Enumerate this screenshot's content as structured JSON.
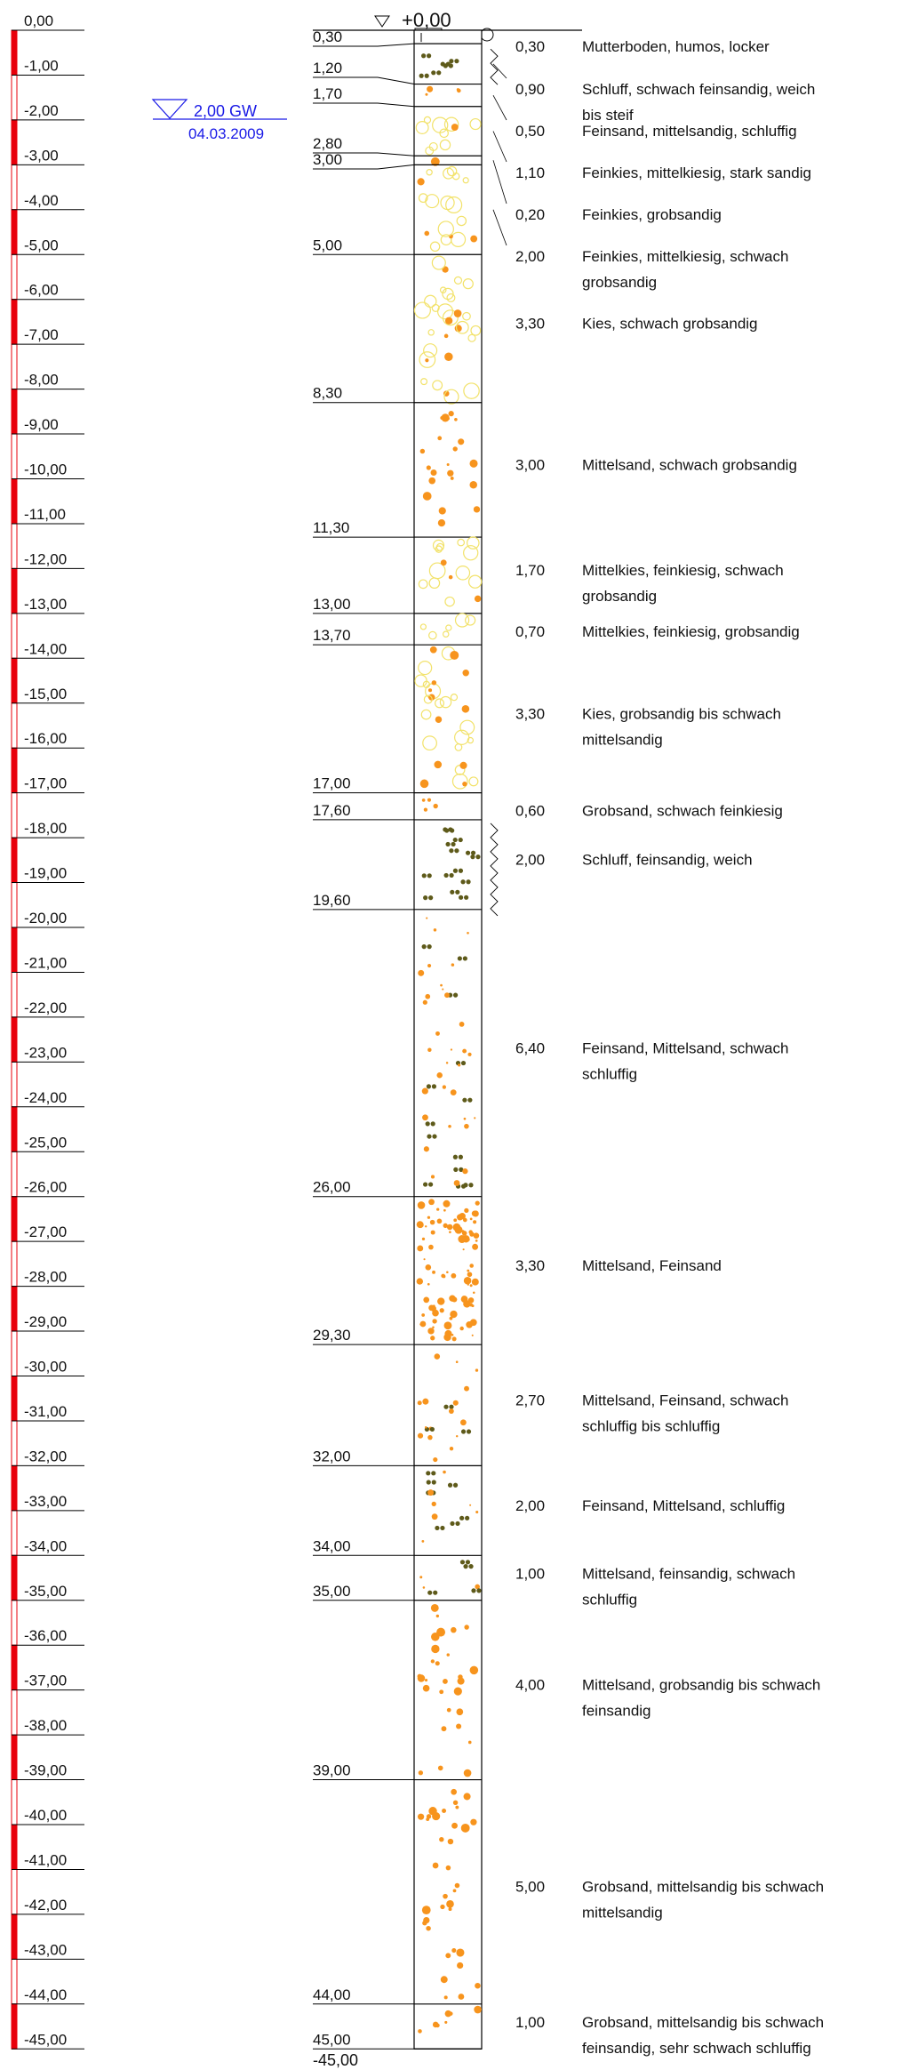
{
  "header": {
    "top_level": "+0,00",
    "bottom_level": "-45,00"
  },
  "groundwater": {
    "depth_value": -2.0,
    "label": "2,00 GW",
    "date": "04.03.2009"
  },
  "depth_scale": {
    "max_depth": 45,
    "tick_labels": [
      "0,00",
      "-1,00",
      "-2,00",
      "-3,00",
      "-4,00",
      "-5,00",
      "-6,00",
      "-7,00",
      "-8,00",
      "-9,00",
      "-10,00",
      "-11,00",
      "-12,00",
      "-13,00",
      "-14,00",
      "-15,00",
      "-16,00",
      "-17,00",
      "-18,00",
      "-19,00",
      "-20,00",
      "-21,00",
      "-22,00",
      "-23,00",
      "-24,00",
      "-25,00",
      "-26,00",
      "-27,00",
      "-28,00",
      "-29,00",
      "-30,00",
      "-31,00",
      "-32,00",
      "-33,00",
      "-34,00",
      "-35,00",
      "-36,00",
      "-37,00",
      "-38,00",
      "-39,00",
      "-40,00",
      "-41,00",
      "-42,00",
      "-43,00",
      "-44,00",
      "-45,00"
    ]
  },
  "colors": {
    "scale_red": "#e8000b",
    "gw_blue": "#1a1ae6",
    "orange": "#f7941d",
    "yellow": "#f2e26a",
    "olive": "#5e5a1a",
    "line": "#000000"
  },
  "layers": [
    {
      "top": 0.0,
      "bottom": 0.3,
      "bottom_label": "0,30",
      "thickness": "0,30",
      "description": "Mutterboden, humos, locker",
      "pattern": "topsoil"
    },
    {
      "top": 0.3,
      "bottom": 1.2,
      "bottom_label": "1,20",
      "thickness": "0,90",
      "description": "Schluff, schwach feinsandig, weich bis steif",
      "pattern": "silt"
    },
    {
      "top": 1.2,
      "bottom": 1.7,
      "bottom_label": "1,70",
      "thickness": "0,50",
      "description": "Feinsand, mittelsandig, schluffig",
      "pattern": "sand_silt"
    },
    {
      "top": 1.7,
      "bottom": 2.8,
      "bottom_label": "2,80",
      "thickness": "1,10",
      "description": "Feinkies, mittelkiesig, stark sandig",
      "pattern": "gravel"
    },
    {
      "top": 2.8,
      "bottom": 3.0,
      "bottom_label": "3,00",
      "thickness": "0,20",
      "description": "Feinkies, grobsandig",
      "pattern": "gravel"
    },
    {
      "top": 3.0,
      "bottom": 5.0,
      "bottom_label": "5,00",
      "thickness": "2,00",
      "description": "Feinkies, mittelkiesig, schwach grobsandig",
      "pattern": "gravel"
    },
    {
      "top": 5.0,
      "bottom": 8.3,
      "bottom_label": "8,30",
      "thickness": "3,30",
      "description": "Kies, schwach grobsandig",
      "pattern": "gravel"
    },
    {
      "top": 8.3,
      "bottom": 11.3,
      "bottom_label": "11,30",
      "thickness": "3,00",
      "description": "Mittelsand, schwach grobsandig",
      "pattern": "sand_coarse"
    },
    {
      "top": 11.3,
      "bottom": 13.0,
      "bottom_label": "13,00",
      "thickness": "1,70",
      "description": "Mittelkies, feinkiesig, schwach grobsandig",
      "pattern": "gravel"
    },
    {
      "top": 13.0,
      "bottom": 13.7,
      "bottom_label": "13,70",
      "thickness": "0,70",
      "description": "Mittelkies, feinkiesig, grobsandig",
      "pattern": "gravel"
    },
    {
      "top": 13.7,
      "bottom": 17.0,
      "bottom_label": "17,00",
      "thickness": "3,30",
      "description": "Kies, grobsandig bis schwach mittelsandig",
      "pattern": "gravel"
    },
    {
      "top": 17.0,
      "bottom": 17.6,
      "bottom_label": "17,60",
      "thickness": "0,60",
      "description": "Grobsand, schwach feinkiesig",
      "pattern": "sand_coarse"
    },
    {
      "top": 17.6,
      "bottom": 19.6,
      "bottom_label": "19,60",
      "thickness": "2,00",
      "description": "Schluff, feinsandig, weich",
      "pattern": "silt"
    },
    {
      "top": 19.6,
      "bottom": 26.0,
      "bottom_label": "26,00",
      "thickness": "6,40",
      "description": "Feinsand, Mittelsand, schwach schluffig",
      "pattern": "sand_silt"
    },
    {
      "top": 26.0,
      "bottom": 29.3,
      "bottom_label": "29,30",
      "thickness": "3,30",
      "description": "Mittelsand, Feinsand",
      "pattern": "sand_dense"
    },
    {
      "top": 29.3,
      "bottom": 32.0,
      "bottom_label": "32,00",
      "thickness": "2,70",
      "description": "Mittelsand, Feinsand, schwach schluffig bis schluffig",
      "pattern": "sand_silt"
    },
    {
      "top": 32.0,
      "bottom": 34.0,
      "bottom_label": "34,00",
      "thickness": "2,00",
      "description": "Feinsand, Mittelsand, schluffig",
      "pattern": "sand_silt"
    },
    {
      "top": 34.0,
      "bottom": 35.0,
      "bottom_label": "35,00",
      "thickness": "1,00",
      "description": "Mittelsand, feinsandig, schwach schluffig",
      "pattern": "sand_silt"
    },
    {
      "top": 35.0,
      "bottom": 39.0,
      "bottom_label": "39,00",
      "thickness": "4,00",
      "description": "Mittelsand, grobsandig bis schwach feinsandig",
      "pattern": "sand_coarse"
    },
    {
      "top": 39.0,
      "bottom": 44.0,
      "bottom_label": "44,00",
      "thickness": "5,00",
      "description": "Grobsand, mittelsandig bis schwach mittelsandig",
      "pattern": "sand_coarse"
    },
    {
      "top": 44.0,
      "bottom": 45.0,
      "bottom_label": "45,00",
      "thickness": "1,00",
      "description": "Grobsand, mittelsandig bis schwach feinsandig, sehr schwach schluffig",
      "pattern": "sand_coarse"
    }
  ]
}
